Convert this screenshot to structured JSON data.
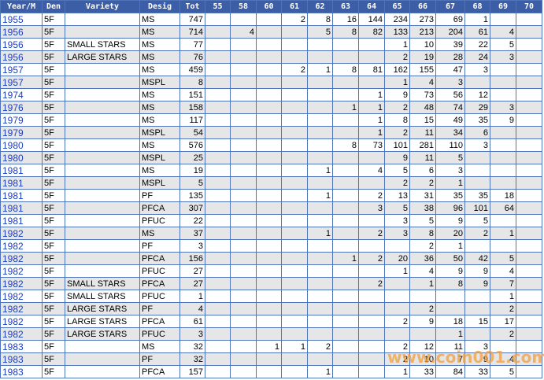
{
  "table": {
    "columns": [
      "Year/M",
      "Den",
      "Variety",
      "Desig",
      "Tot",
      "55",
      "58",
      "60",
      "61",
      "62",
      "63",
      "64",
      "65",
      "66",
      "67",
      "68",
      "69",
      "70"
    ],
    "rows": [
      [
        "1955",
        "5F",
        null,
        "MS",
        747,
        null,
        null,
        null,
        2,
        8,
        16,
        144,
        234,
        273,
        69,
        1,
        null,
        null
      ],
      [
        "1956",
        "5F",
        null,
        "MS",
        714,
        null,
        4,
        null,
        null,
        5,
        8,
        82,
        133,
        213,
        204,
        61,
        4,
        null
      ],
      [
        "1956",
        "5F",
        "SMALL STARS",
        "MS",
        77,
        null,
        null,
        null,
        null,
        null,
        null,
        null,
        1,
        10,
        39,
        22,
        5,
        null
      ],
      [
        "1956",
        "5F",
        "LARGE STARS",
        "MS",
        76,
        null,
        null,
        null,
        null,
        null,
        null,
        null,
        2,
        19,
        28,
        24,
        3,
        null
      ],
      [
        "1957",
        "5F",
        null,
        "MS",
        459,
        null,
        null,
        null,
        2,
        1,
        8,
        81,
        162,
        155,
        47,
        3,
        null,
        null
      ],
      [
        "1957",
        "5F",
        null,
        "MSPL",
        8,
        null,
        null,
        null,
        null,
        null,
        null,
        null,
        1,
        4,
        3,
        null,
        null,
        null
      ],
      [
        "1974",
        "5F",
        null,
        "MS",
        151,
        null,
        null,
        null,
        null,
        null,
        null,
        1,
        9,
        73,
        56,
        12,
        null,
        null
      ],
      [
        "1976",
        "5F",
        null,
        "MS",
        158,
        null,
        null,
        null,
        null,
        null,
        1,
        1,
        2,
        48,
        74,
        29,
        3,
        null
      ],
      [
        "1979",
        "5F",
        null,
        "MS",
        117,
        null,
        null,
        null,
        null,
        null,
        null,
        1,
        8,
        15,
        49,
        35,
        9,
        null
      ],
      [
        "1979",
        "5F",
        null,
        "MSPL",
        54,
        null,
        null,
        null,
        null,
        null,
        null,
        1,
        2,
        11,
        34,
        6,
        null,
        null
      ],
      [
        "1980",
        "5F",
        null,
        "MS",
        576,
        null,
        null,
        null,
        null,
        null,
        8,
        73,
        101,
        281,
        110,
        3,
        null,
        null
      ],
      [
        "1980",
        "5F",
        null,
        "MSPL",
        25,
        null,
        null,
        null,
        null,
        null,
        null,
        null,
        9,
        11,
        5,
        null,
        null,
        null
      ],
      [
        "1981",
        "5F",
        null,
        "MS",
        19,
        null,
        null,
        null,
        null,
        1,
        null,
        4,
        5,
        6,
        3,
        null,
        null,
        null
      ],
      [
        "1981",
        "5F",
        null,
        "MSPL",
        5,
        null,
        null,
        null,
        null,
        null,
        null,
        null,
        2,
        2,
        1,
        null,
        null,
        null
      ],
      [
        "1981",
        "5F",
        null,
        "PF",
        135,
        null,
        null,
        null,
        null,
        1,
        null,
        2,
        13,
        31,
        35,
        35,
        18,
        null
      ],
      [
        "1981",
        "5F",
        null,
        "PFCA",
        307,
        null,
        null,
        null,
        null,
        null,
        null,
        3,
        5,
        38,
        96,
        101,
        64,
        null
      ],
      [
        "1981",
        "5F",
        null,
        "PFUC",
        22,
        null,
        null,
        null,
        null,
        null,
        null,
        null,
        3,
        5,
        9,
        5,
        null,
        null
      ],
      [
        "1982",
        "5F",
        null,
        "MS",
        37,
        null,
        null,
        null,
        null,
        1,
        null,
        2,
        3,
        8,
        20,
        2,
        1,
        null
      ],
      [
        "1982",
        "5F",
        null,
        "PF",
        3,
        null,
        null,
        null,
        null,
        null,
        null,
        null,
        null,
        2,
        1,
        null,
        null,
        null
      ],
      [
        "1982",
        "5F",
        null,
        "PFCA",
        156,
        null,
        null,
        null,
        null,
        null,
        1,
        2,
        20,
        36,
        50,
        42,
        5,
        null
      ],
      [
        "1982",
        "5F",
        null,
        "PFUC",
        27,
        null,
        null,
        null,
        null,
        null,
        null,
        null,
        1,
        4,
        9,
        9,
        4,
        null
      ],
      [
        "1982",
        "5F",
        "SMALL STARS",
        "PFCA",
        27,
        null,
        null,
        null,
        null,
        null,
        null,
        2,
        null,
        1,
        8,
        9,
        7,
        null
      ],
      [
        "1982",
        "5F",
        "SMALL STARS",
        "PFUC",
        1,
        null,
        null,
        null,
        null,
        null,
        null,
        null,
        null,
        null,
        null,
        null,
        1,
        null
      ],
      [
        "1982",
        "5F",
        "LARGE STARS",
        "PF",
        4,
        null,
        null,
        null,
        null,
        null,
        null,
        null,
        null,
        2,
        null,
        null,
        2,
        null
      ],
      [
        "1982",
        "5F",
        "LARGE STARS",
        "PFCA",
        61,
        null,
        null,
        null,
        null,
        null,
        null,
        null,
        2,
        9,
        18,
        15,
        17,
        null
      ],
      [
        "1982",
        "5F",
        "LARGE STARS",
        "PFUC",
        3,
        null,
        null,
        null,
        null,
        null,
        null,
        null,
        null,
        null,
        1,
        null,
        2,
        null
      ],
      [
        "1983",
        "5F",
        null,
        "MS",
        32,
        null,
        null,
        1,
        1,
        2,
        null,
        null,
        2,
        12,
        11,
        3,
        null,
        null
      ],
      [
        "1983",
        "5F",
        null,
        "PF",
        32,
        null,
        null,
        null,
        null,
        null,
        null,
        null,
        2,
        10,
        7,
        9,
        4,
        null
      ],
      [
        "1983",
        "5F",
        null,
        "PFCA",
        157,
        null,
        null,
        null,
        null,
        1,
        null,
        null,
        1,
        33,
        84,
        33,
        5,
        null
      ]
    ]
  },
  "watermark": "www.coin001.com"
}
